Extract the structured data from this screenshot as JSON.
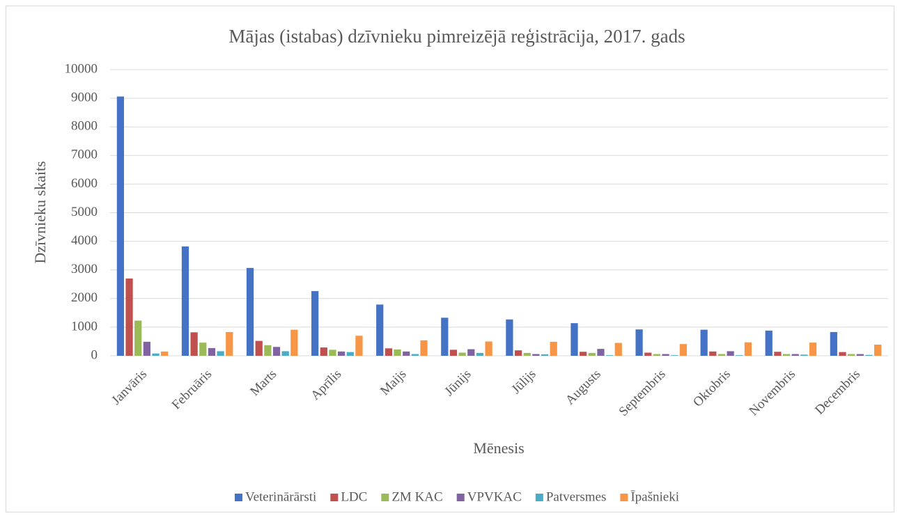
{
  "chart_data": {
    "type": "bar",
    "title": "Mājas (istabas) dzīvnieku pimreizējā reģistrācija, 2017. gads",
    "x_label": "Mēnesis",
    "y_label": "Dzīvnieku skaits",
    "categories": [
      "Janvāris",
      "Februāris",
      "Marts",
      "Aprīlis",
      "Maijs",
      "Jūnijs",
      "Jūlijs",
      "Augusts",
      "Septembris",
      "Oktobris",
      "Novembris",
      "Decembris"
    ],
    "series": [
      {
        "name": "Veterinārārsti",
        "color": "#4472c4",
        "values": [
          9060,
          3820,
          3070,
          2260,
          1790,
          1330,
          1270,
          1140,
          920,
          910,
          880,
          830
        ]
      },
      {
        "name": "LDC",
        "color": "#c0504d",
        "values": [
          2700,
          820,
          520,
          290,
          260,
          210,
          190,
          140,
          110,
          150,
          140,
          130
        ]
      },
      {
        "name": "ZM KAC",
        "color": "#9bbb59",
        "values": [
          1230,
          460,
          370,
          210,
          220,
          110,
          100,
          100,
          60,
          60,
          60,
          60
        ]
      },
      {
        "name": "VPVKAC",
        "color": "#8064a2",
        "values": [
          490,
          270,
          310,
          150,
          150,
          230,
          60,
          240,
          60,
          160,
          60,
          60
        ]
      },
      {
        "name": "Patversmes",
        "color": "#4bacc6",
        "values": [
          80,
          160,
          160,
          130,
          60,
          100,
          50,
          20,
          20,
          20,
          40,
          30
        ]
      },
      {
        "name": "Īpašnieki",
        "color": "#f79646",
        "values": [
          150,
          830,
          910,
          700,
          540,
          500,
          490,
          450,
          410,
          470,
          460,
          390
        ]
      }
    ],
    "ylim": [
      0,
      10000
    ],
    "yticks": [
      0,
      1000,
      2000,
      3000,
      4000,
      5000,
      6000,
      7000,
      8000,
      9000,
      10000
    ],
    "grid": true,
    "legend": "bottom"
  }
}
